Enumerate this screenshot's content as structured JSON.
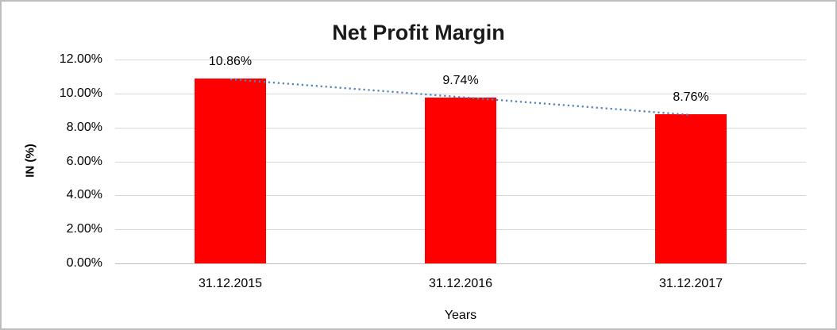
{
  "chart_data": {
    "type": "bar",
    "title": "Net Profit Margin",
    "xlabel": "Years",
    "ylabel": "IN (%)",
    "categories": [
      "31.12.2015",
      "31.12.2016",
      "31.12.2017"
    ],
    "values": [
      10.86,
      9.74,
      8.76
    ],
    "data_labels": [
      "10.86%",
      "9.74%",
      "8.76%"
    ],
    "y_tick_values": [
      0,
      2,
      4,
      6,
      8,
      10,
      12
    ],
    "y_tick_labels": [
      "0.00%",
      "2.00%",
      "4.00%",
      "6.00%",
      "8.00%",
      "10.00%",
      "12.00%"
    ],
    "ylim": [
      0,
      12
    ],
    "grid": true,
    "legend": "none",
    "trendline": {
      "type": "linear",
      "style": "dotted",
      "color": "#4f81bd"
    },
    "colors": {
      "bar": "#ff0000",
      "gridline": "#d9d9d9",
      "axis_line": "#c0c0c0",
      "text": "#000000",
      "title": "#1a1a1a",
      "frame": "#bdbdbd"
    }
  }
}
